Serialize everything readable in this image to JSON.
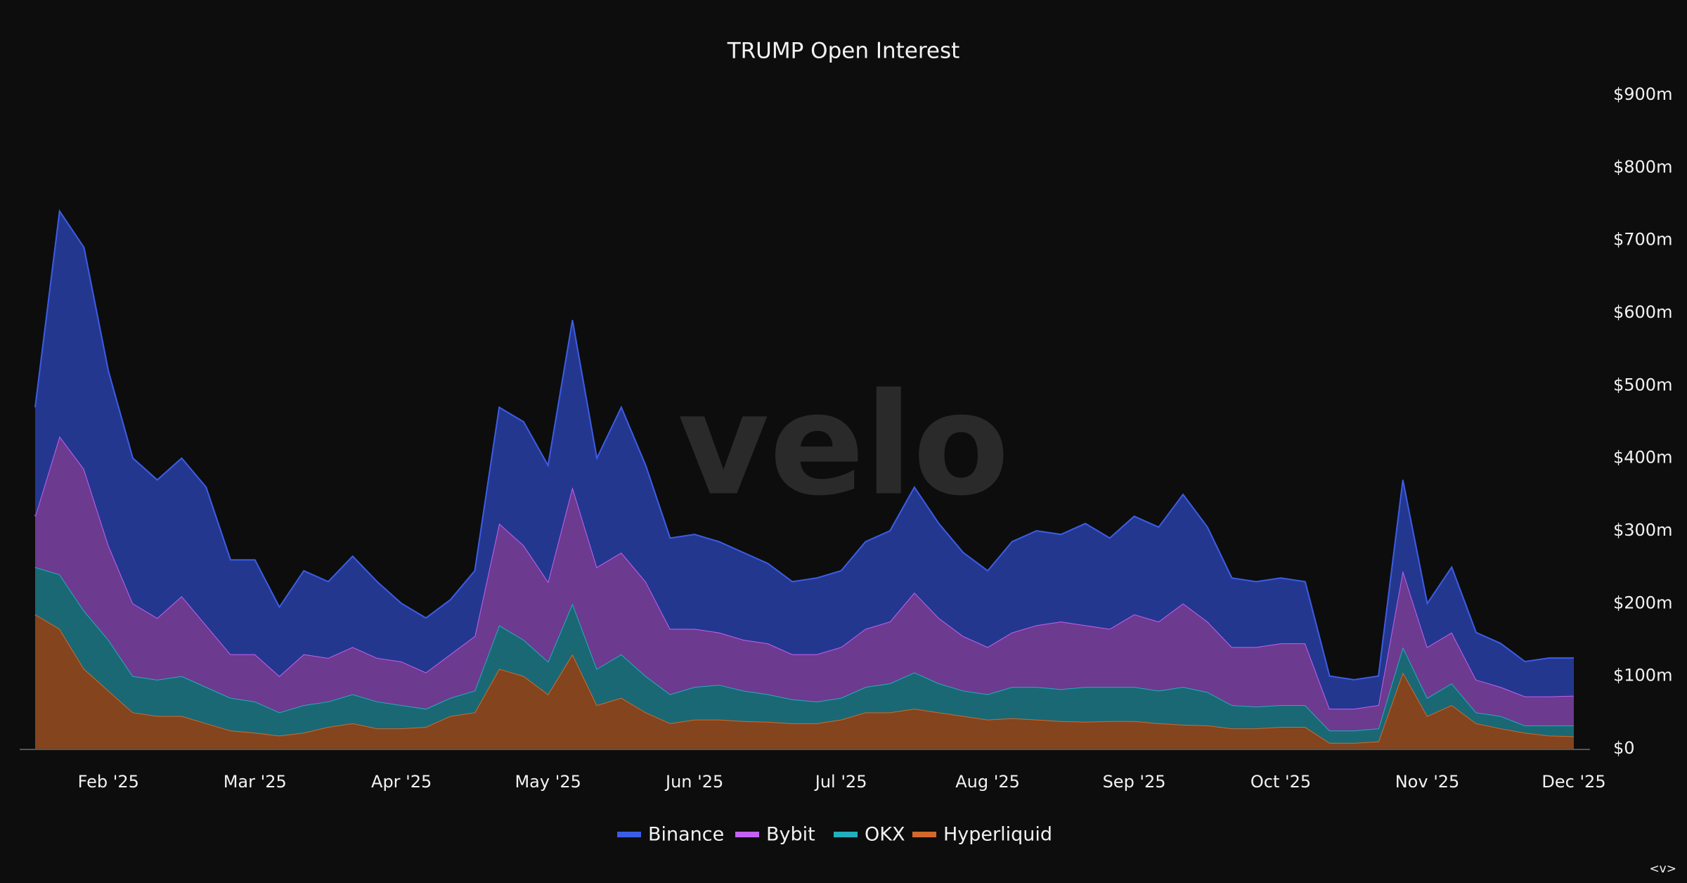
{
  "chart_data": {
    "type": "stacked-area",
    "title": "TRUMP Open Interest",
    "watermark": "velo",
    "corner_text": "<v>",
    "categories": [
      null,
      null,
      null,
      "Feb '25",
      null,
      null,
      null,
      null,
      null,
      "Mar '25",
      null,
      null,
      null,
      null,
      null,
      "Apr '25",
      null,
      null,
      null,
      null,
      null,
      "May '25",
      null,
      null,
      null,
      null,
      null,
      "Jun '25",
      null,
      null,
      null,
      null,
      null,
      "Jul '25",
      null,
      null,
      null,
      null,
      null,
      "Aug '25",
      null,
      null,
      null,
      null,
      null,
      "Sep '25",
      null,
      null,
      null,
      null,
      null,
      "Oct '25",
      null,
      null,
      null,
      null,
      null,
      "Nov '25",
      null,
      null,
      null,
      null,
      null,
      "Dec '25"
    ],
    "series": [
      {
        "name": "Binance",
        "color": "#3b5de6",
        "fill": "#24378f",
        "values": [
          150,
          310,
          305,
          240,
          200,
          190,
          190,
          190,
          130,
          130,
          95,
          115,
          105,
          125,
          105,
          80,
          75,
          75,
          90,
          160,
          170,
          160,
          230,
          150,
          200,
          160,
          125,
          130,
          125,
          120,
          110,
          100,
          105,
          105,
          120,
          125,
          145,
          130,
          115,
          105,
          125,
          130,
          120,
          140,
          125,
          135,
          130,
          150,
          130,
          95,
          90,
          90,
          85,
          45,
          40,
          40,
          125,
          60,
          90,
          65,
          60,
          48,
          53,
          52
        ]
      },
      {
        "name": "Bybit",
        "color": "#c461f2",
        "fill": "#6c3a8e",
        "values": [
          70,
          190,
          195,
          130,
          100,
          85,
          110,
          85,
          60,
          65,
          50,
          70,
          60,
          65,
          60,
          60,
          50,
          60,
          75,
          140,
          130,
          110,
          160,
          140,
          140,
          130,
          90,
          80,
          72,
          70,
          70,
          62,
          65,
          70,
          80,
          85,
          110,
          90,
          75,
          65,
          75,
          85,
          93,
          85,
          80,
          100,
          95,
          115,
          97,
          80,
          82,
          85,
          85,
          30,
          30,
          32,
          105,
          70,
          70,
          45,
          40,
          40,
          40,
          41
        ]
      },
      {
        "name": "OKX",
        "color": "#22aebc",
        "fill": "#1a6874",
        "values": [
          65,
          75,
          80,
          70,
          50,
          50,
          55,
          50,
          45,
          43,
          32,
          38,
          35,
          40,
          37,
          32,
          25,
          25,
          30,
          60,
          50,
          45,
          70,
          50,
          60,
          50,
          40,
          45,
          48,
          42,
          38,
          33,
          30,
          30,
          35,
          40,
          50,
          40,
          35,
          35,
          43,
          45,
          44,
          48,
          47,
          47,
          45,
          52,
          46,
          32,
          30,
          30,
          30,
          17,
          17,
          18,
          35,
          25,
          30,
          15,
          17,
          10,
          14,
          15
        ]
      },
      {
        "name": "Hyperliquid",
        "color": "#d2692a",
        "fill": "#83441e",
        "values": [
          185,
          165,
          110,
          80,
          50,
          45,
          45,
          35,
          25,
          22,
          18,
          22,
          30,
          35,
          28,
          28,
          30,
          45,
          50,
          110,
          100,
          75,
          130,
          60,
          70,
          50,
          35,
          40,
          40,
          38,
          37,
          35,
          35,
          40,
          50,
          50,
          55,
          50,
          45,
          40,
          42,
          40,
          38,
          37,
          38,
          38,
          35,
          33,
          32,
          28,
          28,
          30,
          30,
          8,
          8,
          10,
          105,
          45,
          60,
          35,
          28,
          22,
          18,
          17
        ]
      }
    ],
    "ylim": [
      0,
      900
    ],
    "yticks": [
      {
        "value": 0,
        "label": "$0"
      },
      {
        "value": 100,
        "label": "$100m"
      },
      {
        "value": 200,
        "label": "$200m"
      },
      {
        "value": 300,
        "label": "$300m"
      },
      {
        "value": 400,
        "label": "$400m"
      },
      {
        "value": 500,
        "label": "$500m"
      },
      {
        "value": 600,
        "label": "$600m"
      },
      {
        "value": 700,
        "label": "$700m"
      },
      {
        "value": 800,
        "label": "$800m"
      },
      {
        "value": 900,
        "label": "$900m"
      }
    ],
    "legend": "bottom"
  }
}
